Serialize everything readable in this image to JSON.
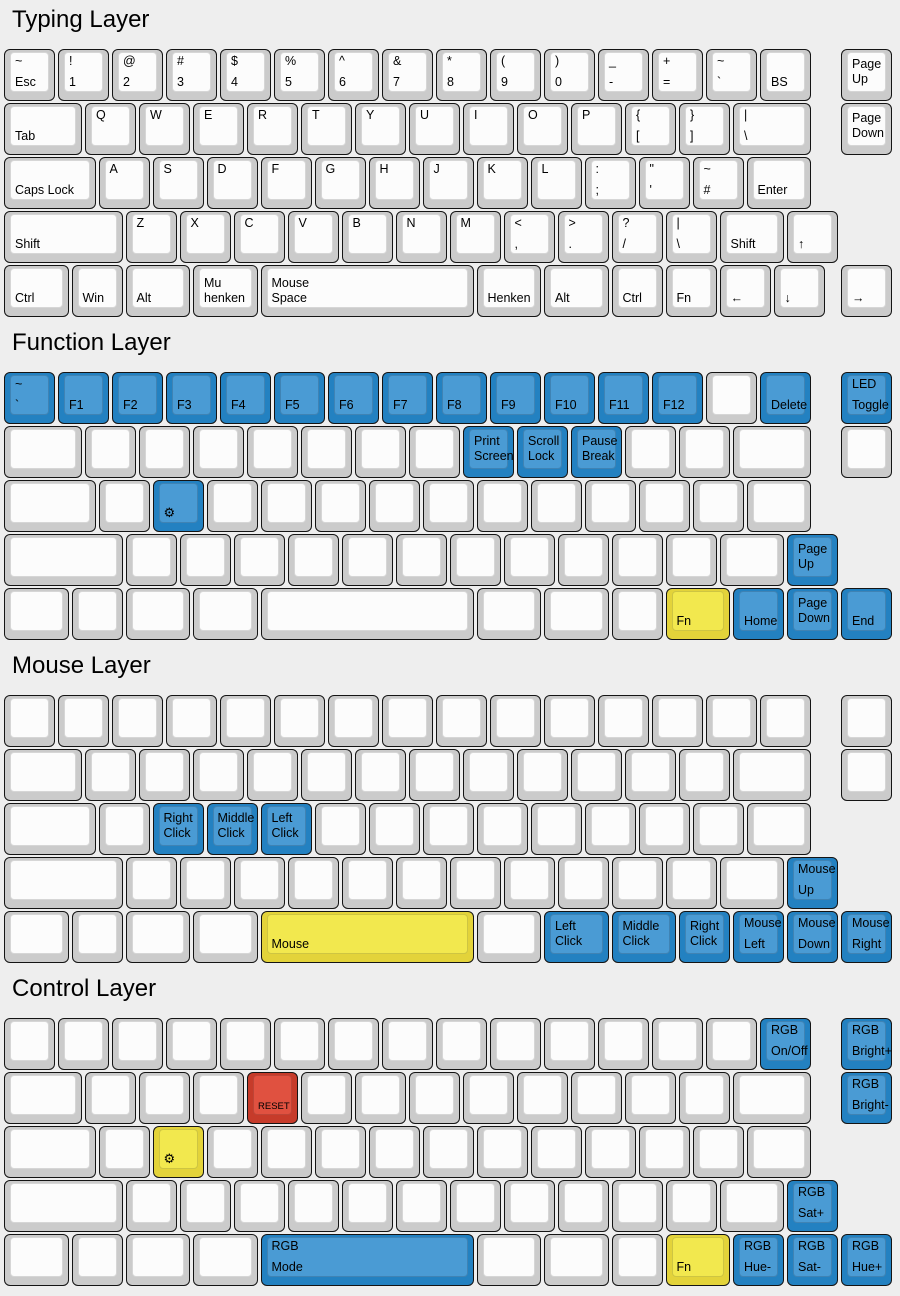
{
  "page": {
    "background": "#eeeeee",
    "text_color": "#000000"
  },
  "colors": {
    "white": {
      "outer": "#cbcbcb",
      "inner": "#fcfcfc"
    },
    "blue": {
      "outer": "#2381c1",
      "inner": "#4a9bd4"
    },
    "yellow": {
      "outer": "#e3d33a",
      "inner": "#f2e84e"
    },
    "red": {
      "outer": "#c63b2a",
      "inner": "#e05140"
    }
  },
  "icons": {
    "gear": "⚙"
  },
  "layers": [
    {
      "title": "Typing Layer",
      "rows": [
        [
          {
            "t": "~",
            "b": "Esc"
          },
          {
            "t": "!",
            "b": "1"
          },
          {
            "t": "@",
            "b": "2"
          },
          {
            "t": "#",
            "b": "3"
          },
          {
            "t": "$",
            "b": "4"
          },
          {
            "t": "%",
            "b": "5"
          },
          {
            "t": "^",
            "b": "6"
          },
          {
            "t": "&",
            "b": "7"
          },
          {
            "t": "*",
            "b": "8"
          },
          {
            "t": "(",
            "b": "9"
          },
          {
            "t": ")",
            "b": "0"
          },
          {
            "t": "_",
            "b": "-"
          },
          {
            "t": "+",
            "b": "="
          },
          {
            "t": "~",
            "b": "`"
          },
          {
            "b": "BS"
          },
          {
            "x": 15.5,
            "m": [
              "Page",
              "Up"
            ]
          }
        ],
        [
          {
            "w": 1.5,
            "b": "Tab"
          },
          {
            "t": "Q"
          },
          {
            "t": "W"
          },
          {
            "t": "E"
          },
          {
            "t": "R"
          },
          {
            "t": "T"
          },
          {
            "t": "Y"
          },
          {
            "t": "U"
          },
          {
            "t": "I"
          },
          {
            "t": "O"
          },
          {
            "t": "P"
          },
          {
            "t": "{",
            "b": "["
          },
          {
            "t": "}",
            "b": "]"
          },
          {
            "w": 1.5,
            "t": "|",
            "b": "\\"
          },
          {
            "x": 15.5,
            "m": [
              "Page",
              "Down"
            ]
          }
        ],
        [
          {
            "w": 1.75,
            "b": "Caps Lock"
          },
          {
            "t": "A"
          },
          {
            "t": "S"
          },
          {
            "t": "D"
          },
          {
            "t": "F"
          },
          {
            "t": "G"
          },
          {
            "t": "H"
          },
          {
            "t": "J"
          },
          {
            "t": "K"
          },
          {
            "t": "L"
          },
          {
            "t": ":",
            "b": ";"
          },
          {
            "t": "\"",
            "b": "'"
          },
          {
            "t": "~",
            "b": "#"
          },
          {
            "w": 1.25,
            "b": "Enter"
          }
        ],
        [
          {
            "w": 2.25,
            "b": "Shift"
          },
          {
            "t": "Z"
          },
          {
            "t": "X"
          },
          {
            "t": "C"
          },
          {
            "t": "V"
          },
          {
            "t": "B"
          },
          {
            "t": "N"
          },
          {
            "t": "M"
          },
          {
            "t": "<",
            "b": ","
          },
          {
            "t": ">",
            "b": "."
          },
          {
            "t": "?",
            "b": "/"
          },
          {
            "t": "|",
            "b": "\\"
          },
          {
            "w": 1.25,
            "b": "Shift"
          },
          {
            "b": "↑"
          }
        ],
        [
          {
            "w": 1.25,
            "b": "Ctrl"
          },
          {
            "b": "Win"
          },
          {
            "w": 1.25,
            "b": "Alt"
          },
          {
            "w": 1.25,
            "bl": [
              "Mu",
              "henken"
            ]
          },
          {
            "w": 4,
            "bl": [
              "Mouse",
              "Space"
            ]
          },
          {
            "w": 1.25,
            "b": "Henken"
          },
          {
            "w": 1.25,
            "b": "Alt"
          },
          {
            "b": "Ctrl"
          },
          {
            "b": "Fn"
          },
          {
            "b": "←"
          },
          {
            "b": "↓"
          },
          {
            "x": 15.5,
            "b": "→"
          }
        ]
      ]
    },
    {
      "title": "Function Layer",
      "rows": [
        [
          {
            "c": "blue",
            "t": "~",
            "b": "`"
          },
          {
            "c": "blue",
            "b": "F1"
          },
          {
            "c": "blue",
            "b": "F2"
          },
          {
            "c": "blue",
            "b": "F3"
          },
          {
            "c": "blue",
            "b": "F4"
          },
          {
            "c": "blue",
            "b": "F5"
          },
          {
            "c": "blue",
            "b": "F6"
          },
          {
            "c": "blue",
            "b": "F7"
          },
          {
            "c": "blue",
            "b": "F8"
          },
          {
            "c": "blue",
            "b": "F9"
          },
          {
            "c": "blue",
            "b": "F10"
          },
          {
            "c": "blue",
            "b": "F11"
          },
          {
            "c": "blue",
            "b": "F12"
          },
          {},
          {
            "c": "blue",
            "b": "Delete"
          },
          {
            "x": 15.5,
            "c": "blue",
            "t": "LED",
            "b": "Toggle"
          }
        ],
        [
          {
            "w": 1.5
          },
          {},
          {},
          {},
          {},
          {},
          {},
          {},
          {
            "c": "blue",
            "m": [
              "Print",
              "Screen"
            ]
          },
          {
            "c": "blue",
            "m": [
              "Scroll",
              "Lock"
            ]
          },
          {
            "c": "blue",
            "m": [
              "Pause",
              "Break"
            ]
          },
          {},
          {},
          {
            "w": 1.5
          },
          {
            "x": 15.5
          }
        ],
        [
          {
            "w": 1.75
          },
          {},
          {
            "c": "blue",
            "icon": "gear"
          },
          {},
          {},
          {},
          {},
          {},
          {},
          {},
          {},
          {},
          {},
          {
            "w": 1.25
          }
        ],
        [
          {
            "w": 2.25
          },
          {},
          {},
          {},
          {},
          {},
          {},
          {},
          {},
          {},
          {},
          {},
          {
            "w": 1.25
          },
          {
            "x": 14.5,
            "c": "blue",
            "m": [
              "Page",
              "Up"
            ]
          }
        ],
        [
          {
            "w": 1.25
          },
          {},
          {
            "w": 1.25
          },
          {
            "w": 1.25
          },
          {
            "w": 4
          },
          {
            "w": 1.25
          },
          {
            "w": 1.25
          },
          {},
          {
            "w": 1.25,
            "c": "yellow",
            "b": "Fn"
          },
          {
            "c": "blue",
            "b": "Home"
          },
          {
            "c": "blue",
            "m": [
              "Page",
              "Down"
            ]
          },
          {
            "c": "blue",
            "b": "End"
          }
        ]
      ]
    },
    {
      "title": "Mouse Layer",
      "rows": [
        [
          {},
          {},
          {},
          {},
          {},
          {},
          {},
          {},
          {},
          {},
          {},
          {},
          {},
          {},
          {},
          {
            "x": 15.5
          }
        ],
        [
          {
            "w": 1.5
          },
          {},
          {},
          {},
          {},
          {},
          {},
          {},
          {},
          {},
          {},
          {},
          {},
          {
            "w": 1.5
          },
          {
            "x": 15.5
          }
        ],
        [
          {
            "w": 1.75
          },
          {},
          {
            "c": "blue",
            "m": [
              "Right",
              "Click"
            ]
          },
          {
            "c": "blue",
            "m": [
              "Middle",
              "Click"
            ]
          },
          {
            "c": "blue",
            "m": [
              "Left",
              "Click"
            ]
          },
          {},
          {},
          {},
          {},
          {},
          {},
          {},
          {},
          {
            "w": 1.25
          }
        ],
        [
          {
            "w": 2.25
          },
          {},
          {},
          {},
          {},
          {},
          {},
          {},
          {},
          {},
          {},
          {},
          {
            "w": 1.25
          },
          {
            "x": 14.5,
            "c": "blue",
            "t": "Mouse",
            "b": "Up"
          }
        ],
        [
          {
            "w": 1.25
          },
          {},
          {
            "w": 1.25
          },
          {
            "w": 1.25
          },
          {
            "w": 4,
            "c": "yellow",
            "b": "Mouse"
          },
          {
            "w": 1.25
          },
          {
            "w": 1.25,
            "c": "blue",
            "m": [
              "Left",
              "Click"
            ]
          },
          {
            "w": 1.25,
            "c": "blue",
            "m": [
              "Middle",
              "Click"
            ]
          },
          {
            "c": "blue",
            "m": [
              "Right",
              "Click"
            ]
          },
          {
            "c": "blue",
            "t": "Mouse",
            "b": "Left"
          },
          {
            "c": "blue",
            "t": "Mouse",
            "b": "Down"
          },
          {
            "c": "blue",
            "t": "Mouse",
            "b": "Right"
          }
        ]
      ]
    },
    {
      "title": "Control Layer",
      "rows": [
        [
          {},
          {},
          {},
          {},
          {},
          {},
          {},
          {},
          {},
          {},
          {},
          {},
          {},
          {},
          {
            "c": "blue",
            "t": "RGB",
            "b": "On/Off"
          },
          {
            "x": 15.5,
            "c": "blue",
            "t": "RGB",
            "b": "Bright+"
          }
        ],
        [
          {
            "w": 1.5
          },
          {},
          {},
          {},
          {
            "c": "red",
            "b": "RESET",
            "small": true
          },
          {},
          {},
          {},
          {},
          {},
          {},
          {},
          {},
          {
            "w": 1.5
          },
          {
            "x": 15.5,
            "c": "blue",
            "t": "RGB",
            "b": "Bright-"
          }
        ],
        [
          {
            "w": 1.75
          },
          {},
          {
            "c": "yellow",
            "icon": "gear"
          },
          {},
          {},
          {},
          {},
          {},
          {},
          {},
          {},
          {},
          {},
          {
            "w": 1.25
          }
        ],
        [
          {
            "w": 2.25
          },
          {},
          {},
          {},
          {},
          {},
          {},
          {},
          {},
          {},
          {},
          {},
          {
            "w": 1.25
          },
          {
            "x": 14.5,
            "c": "blue",
            "t": "RGB",
            "b": "Sat+"
          }
        ],
        [
          {
            "w": 1.25
          },
          {},
          {
            "w": 1.25
          },
          {
            "w": 1.25
          },
          {
            "w": 4,
            "c": "blue",
            "t": "RGB",
            "b": "Mode"
          },
          {
            "w": 1.25
          },
          {
            "w": 1.25
          },
          {},
          {
            "w": 1.25,
            "c": "yellow",
            "b": "Fn"
          },
          {
            "c": "blue",
            "t": "RGB",
            "b": "Hue-"
          },
          {
            "c": "blue",
            "t": "RGB",
            "b": "Sat-"
          },
          {
            "c": "blue",
            "t": "RGB",
            "b": "Hue+"
          }
        ]
      ]
    }
  ]
}
